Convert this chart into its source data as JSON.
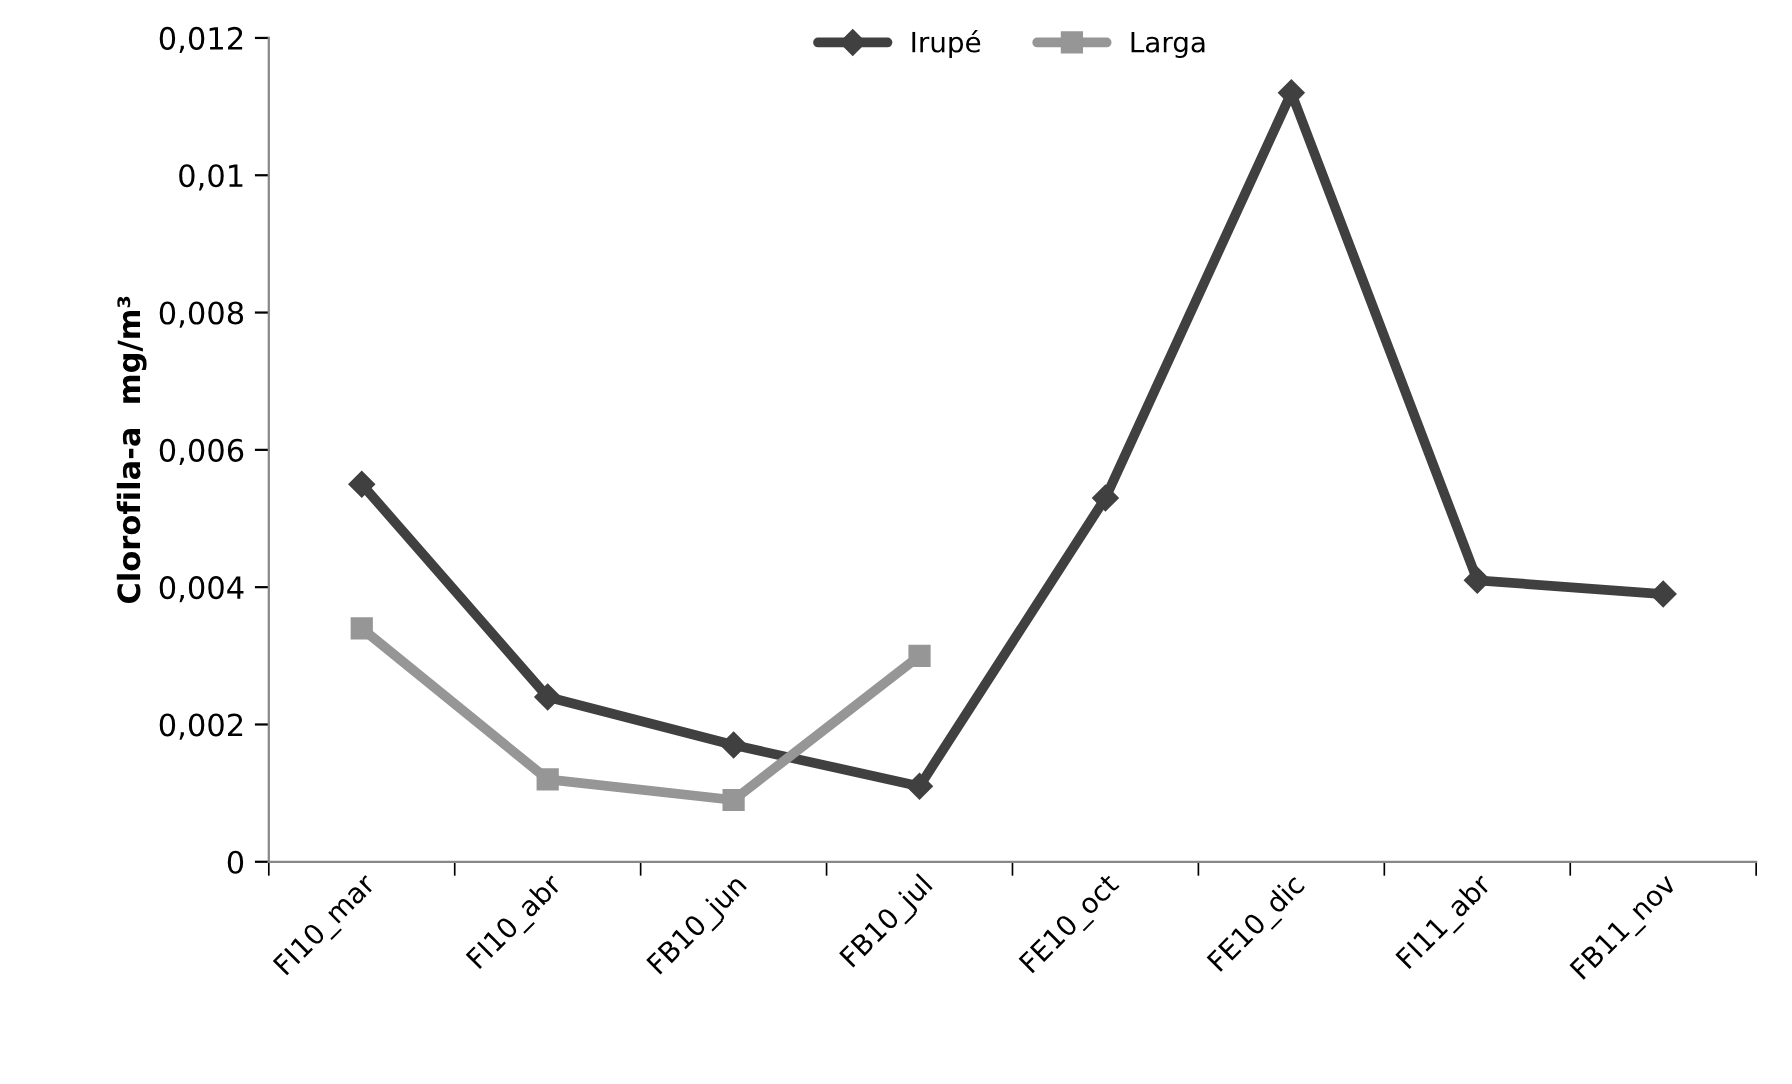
{
  "chart_data": {
    "type": "line",
    "ylabel": "Clorofila-a  mg/m³",
    "categories": [
      "FI10_mar",
      "FI10_abr",
      "FB10_jun",
      "FB10_jul",
      "FE10_oct",
      "FE10_dic",
      "FI11_abr",
      "FB11_nov"
    ],
    "series": [
      {
        "name": "Irupé",
        "color": "#404040",
        "marker": "diamond",
        "values": [
          0.0055,
          0.0024,
          0.0017,
          0.0011,
          0.0053,
          0.0112,
          0.0041,
          0.0039
        ]
      },
      {
        "name": "Larga",
        "color": "#969696",
        "marker": "square",
        "values": [
          0.0034,
          0.0012,
          0.0009,
          0.003,
          null,
          null,
          null,
          null
        ]
      }
    ],
    "ylim": [
      0,
      0.012
    ],
    "yticks": [
      {
        "value": 0,
        "label": "0"
      },
      {
        "value": 0.002,
        "label": "0,002"
      },
      {
        "value": 0.004,
        "label": "0,004"
      },
      {
        "value": 0.006,
        "label": "0,006"
      },
      {
        "value": 0.008,
        "label": "0,008"
      },
      {
        "value": 0.01,
        "label": "0,01"
      },
      {
        "value": 0.012,
        "label": "0,012"
      }
    ],
    "grid": false,
    "legend": "top",
    "line_style": "solid"
  }
}
